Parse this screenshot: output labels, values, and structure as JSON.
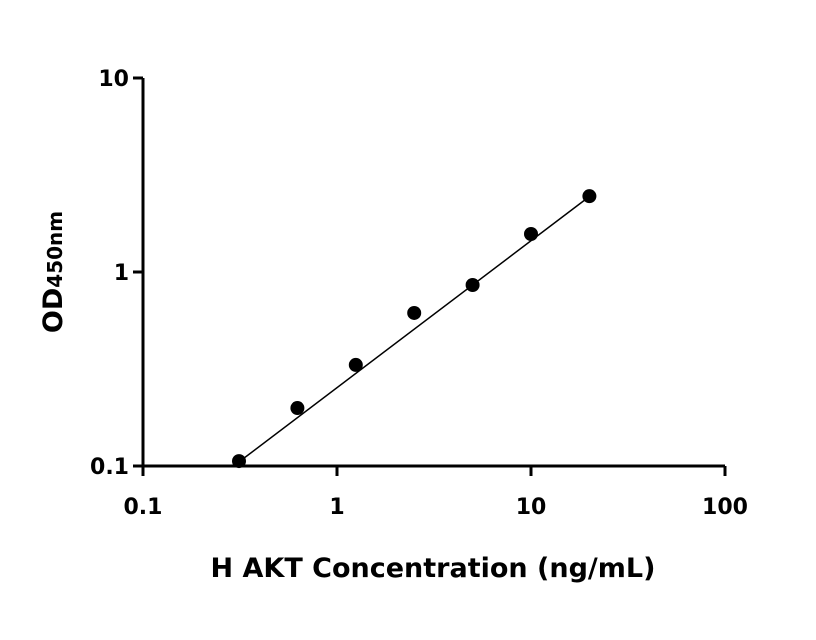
{
  "chart_data": {
    "type": "scatter",
    "x_label": "H AKT Concentration (ng/mL)",
    "y_label": "OD",
    "y_label_sub": "450nm",
    "xscale": "log",
    "yscale": "log",
    "xlim": [
      0.1,
      100
    ],
    "ylim": [
      0.1,
      10
    ],
    "xticks": [
      0.1,
      1,
      10,
      100
    ],
    "yticks": [
      0.1,
      1,
      10
    ],
    "series": [
      {
        "color": "#000000",
        "mode": "markers",
        "x": [
          0.3125,
          0.625,
          1.25,
          2.5,
          5,
          10,
          20
        ],
        "values": [
          0.106,
          0.199,
          0.332,
          0.615,
          0.857,
          1.57,
          2.46
        ]
      },
      {
        "color": "#000000",
        "mode": "line",
        "x": [
          0.3125,
          20
        ],
        "values": [
          0.105,
          2.45
        ]
      }
    ]
  }
}
